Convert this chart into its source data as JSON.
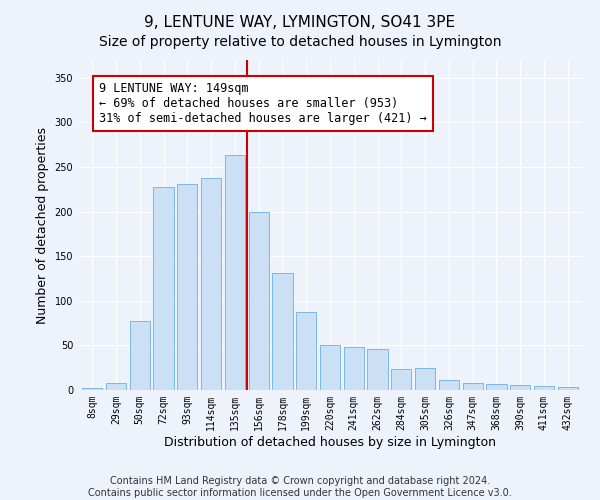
{
  "title": "9, LENTUNE WAY, LYMINGTON, SO41 3PE",
  "subtitle": "Size of property relative to detached houses in Lymington",
  "xlabel": "Distribution of detached houses by size in Lymington",
  "ylabel": "Number of detached properties",
  "categories": [
    "8sqm",
    "29sqm",
    "50sqm",
    "72sqm",
    "93sqm",
    "114sqm",
    "135sqm",
    "156sqm",
    "178sqm",
    "199sqm",
    "220sqm",
    "241sqm",
    "262sqm",
    "284sqm",
    "305sqm",
    "326sqm",
    "347sqm",
    "368sqm",
    "390sqm",
    "411sqm",
    "432sqm"
  ],
  "values": [
    2,
    8,
    77,
    228,
    231,
    238,
    264,
    200,
    131,
    87,
    50,
    48,
    46,
    24,
    25,
    11,
    8,
    7,
    6,
    4,
    3
  ],
  "bar_color": "#cce0f5",
  "bar_edge_color": "#7ab8e8",
  "vline_x_index": 7,
  "vline_color": "#cc0000",
  "annotation_text": "9 LENTUNE WAY: 149sqm\n← 69% of detached houses are smaller (953)\n31% of semi-detached houses are larger (421) →",
  "annotation_box_color": "#ffffff",
  "annotation_box_edge_color": "#cc0000",
  "ylim": [
    0,
    370
  ],
  "yticks": [
    0,
    50,
    100,
    150,
    200,
    250,
    300,
    350
  ],
  "footer_line1": "Contains HM Land Registry data © Crown copyright and database right 2024.",
  "footer_line2": "Contains public sector information licensed under the Open Government Licence v3.0.",
  "bg_color": "#eef2fb",
  "plot_bg_color": "#eef2fb",
  "title_fontsize": 11,
  "subtitle_fontsize": 10,
  "axis_label_fontsize": 9,
  "tick_fontsize": 7,
  "footer_fontsize": 7,
  "annotation_fontsize": 8.5
}
